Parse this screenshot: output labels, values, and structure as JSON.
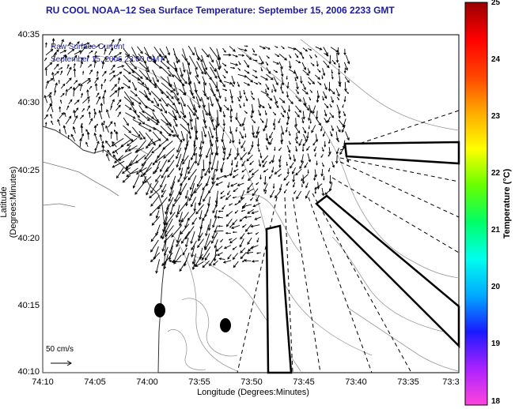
{
  "title": "RU COOL  NOAA−12  Sea Surface Temperature:  September 15, 2006 2233 GMT",
  "overlay": {
    "line1": "Raw Surface Current",
    "line2": "September 15, 2006 23:00 GMT"
  },
  "scale_label": "50 cm/s",
  "axes": {
    "y_label": "Latitude (Degrees:Minutes)",
    "x_label": "Longitude (Degrees:Minutes)",
    "y_ticks": [
      "40:35",
      "40:30",
      "40:25",
      "40:20",
      "40:15",
      "40:10"
    ],
    "x_ticks": [
      "74:10",
      "74:05",
      "74:00",
      "73:55",
      "73:50",
      "73:45",
      "73:40",
      "73:35",
      "73:3"
    ]
  },
  "colorbar": {
    "title": "Temperature (°C)",
    "ticks": [
      "25",
      "24",
      "23",
      "22",
      "21",
      "20",
      "19",
      "18"
    ],
    "colors": [
      "#ff44dd",
      "#aa22ff",
      "#1a1aff",
      "#00aaff",
      "#00ffee",
      "#00ff66",
      "#66ff00",
      "#ffff00",
      "#ffaa00",
      "#ff4400",
      "#ff0000",
      "#990000"
    ]
  },
  "colors": {
    "title": "#1a1aa6",
    "contour": "#888888",
    "vector": "#000000"
  }
}
